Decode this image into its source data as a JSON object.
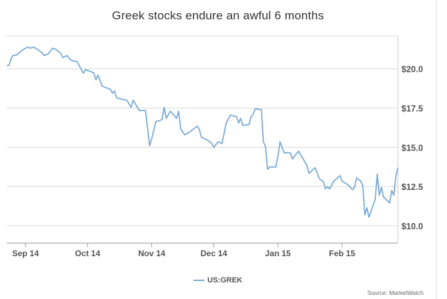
{
  "chart_data": {
    "type": "line",
    "title": "Greek stocks endure an awful 6 months",
    "xlabel": "",
    "ylabel": "",
    "x_tick_labels": [
      "Sep 14",
      "Oct 14",
      "Nov 14",
      "Dec 14",
      "Jan 15",
      "Feb 15"
    ],
    "y_ticks": [
      10.0,
      12.5,
      15.0,
      17.5,
      20.0
    ],
    "y_tick_labels": [
      "$10.0",
      "$12.5",
      "$15.0",
      "$17.5",
      "$20.0"
    ],
    "ylim": [
      8.9,
      22.1
    ],
    "xlim": [
      "2014-08-23",
      "2015-02-20"
    ],
    "grid": true,
    "legend_position": "bottom",
    "color": "#7cabd6",
    "series": [
      {
        "name": "US:GREK",
        "points": [
          [
            "2014-08-23",
            20.22
          ],
          [
            "2014-08-24",
            20.22
          ],
          [
            "2014-08-25",
            20.65
          ],
          [
            "2014-08-26",
            20.85
          ],
          [
            "2014-08-28",
            20.9
          ],
          [
            "2014-08-30",
            21.15
          ],
          [
            "2014-09-02",
            21.39
          ],
          [
            "2014-09-03",
            21.32
          ],
          [
            "2014-09-05",
            21.38
          ],
          [
            "2014-09-07",
            21.22
          ],
          [
            "2014-09-09",
            21.02
          ],
          [
            "2014-09-10",
            20.85
          ],
          [
            "2014-09-12",
            20.95
          ],
          [
            "2014-09-14",
            21.32
          ],
          [
            "2014-09-16",
            21.22
          ],
          [
            "2014-09-18",
            20.98
          ],
          [
            "2014-09-19",
            20.72
          ],
          [
            "2014-09-21",
            20.85
          ],
          [
            "2014-09-23",
            20.55
          ],
          [
            "2014-09-26",
            20.45
          ],
          [
            "2014-09-28",
            19.95
          ],
          [
            "2014-09-29",
            19.72
          ],
          [
            "2014-09-30",
            19.95
          ],
          [
            "2014-10-02",
            19.85
          ],
          [
            "2014-10-04",
            19.75
          ],
          [
            "2014-10-05",
            19.3
          ],
          [
            "2014-10-06",
            19.6
          ],
          [
            "2014-10-08",
            18.9
          ],
          [
            "2014-10-09",
            18.85
          ],
          [
            "2014-10-12",
            18.7
          ],
          [
            "2014-10-13",
            18.45
          ],
          [
            "2014-10-14",
            18.6
          ],
          [
            "2014-10-15",
            18.15
          ],
          [
            "2014-10-20",
            18.0
          ],
          [
            "2014-10-22",
            17.55
          ],
          [
            "2014-10-23",
            18.0
          ],
          [
            "2014-10-26",
            17.35
          ],
          [
            "2014-10-29",
            17.35
          ],
          [
            "2014-10-31",
            15.1
          ],
          [
            "2014-11-01",
            15.55
          ],
          [
            "2014-11-03",
            16.65
          ],
          [
            "2014-11-05",
            16.7
          ],
          [
            "2014-11-06",
            16.8
          ],
          [
            "2014-11-07",
            17.55
          ],
          [
            "2014-11-08",
            16.85
          ],
          [
            "2014-11-10",
            17.3
          ],
          [
            "2014-11-13",
            16.85
          ],
          [
            "2014-11-14",
            17.3
          ],
          [
            "2014-11-15",
            16.15
          ],
          [
            "2014-11-17",
            15.8
          ],
          [
            "2014-11-19",
            15.95
          ],
          [
            "2014-11-21",
            16.15
          ],
          [
            "2014-11-23",
            16.35
          ],
          [
            "2014-11-24",
            16.15
          ],
          [
            "2014-11-25",
            15.65
          ],
          [
            "2014-11-28",
            15.45
          ],
          [
            "2014-11-30",
            15.25
          ],
          [
            "2014-12-01",
            15.0
          ],
          [
            "2014-12-03",
            15.35
          ],
          [
            "2014-12-05",
            15.25
          ],
          [
            "2014-12-07",
            16.55
          ],
          [
            "2014-12-09",
            17.05
          ],
          [
            "2014-12-12",
            16.95
          ],
          [
            "2014-12-13",
            16.55
          ],
          [
            "2014-12-14",
            16.85
          ],
          [
            "2014-12-15",
            16.4
          ],
          [
            "2014-12-18",
            16.45
          ],
          [
            "2014-12-19",
            16.95
          ],
          [
            "2014-12-20",
            17.1
          ],
          [
            "2014-12-21",
            17.45
          ],
          [
            "2014-12-24",
            17.4
          ],
          [
            "2014-12-25",
            15.35
          ],
          [
            "2014-12-26",
            15.05
          ],
          [
            "2014-12-27",
            13.6
          ],
          [
            "2014-12-28",
            13.75
          ],
          [
            "2014-12-31",
            13.75
          ],
          [
            "2015-01-01",
            14.45
          ],
          [
            "2015-01-02",
            15.35
          ],
          [
            "2015-01-04",
            14.65
          ],
          [
            "2015-01-07",
            14.65
          ],
          [
            "2015-01-08",
            14.25
          ],
          [
            "2015-01-09",
            14.45
          ],
          [
            "2015-01-11",
            14.75
          ],
          [
            "2015-01-15",
            13.85
          ],
          [
            "2015-01-16",
            13.35
          ],
          [
            "2015-01-19",
            13.7
          ],
          [
            "2015-01-21",
            13.0
          ],
          [
            "2015-01-23",
            12.8
          ],
          [
            "2015-01-24",
            12.35
          ],
          [
            "2015-01-25",
            12.5
          ],
          [
            "2015-01-26",
            12.35
          ],
          [
            "2015-01-28",
            12.85
          ],
          [
            "2015-01-31",
            13.2
          ],
          [
            "2015-02-01",
            12.85
          ],
          [
            "2015-02-04",
            12.6
          ],
          [
            "2015-02-06",
            12.3
          ],
          [
            "2015-02-07",
            12.45
          ],
          [
            "2015-02-08",
            13.05
          ],
          [
            "2015-02-10",
            12.85
          ],
          [
            "2015-02-11",
            12.55
          ],
          [
            "2015-02-12",
            10.7
          ],
          [
            "2015-02-13",
            11.15
          ],
          [
            "2015-02-14",
            10.55
          ],
          [
            "2015-02-17",
            11.7
          ],
          [
            "2015-02-18",
            13.3
          ],
          [
            "2015-02-19",
            11.95
          ],
          [
            "2015-02-20",
            12.45
          ],
          [
            "2015-02-21",
            11.85
          ],
          [
            "2015-02-24",
            11.45
          ],
          [
            "2015-02-25",
            12.25
          ],
          [
            "2015-02-26",
            11.95
          ],
          [
            "2015-02-27",
            13.15
          ],
          [
            "2015-02-28",
            13.7
          ]
        ]
      }
    ],
    "source": "Source: MarketWatch"
  }
}
